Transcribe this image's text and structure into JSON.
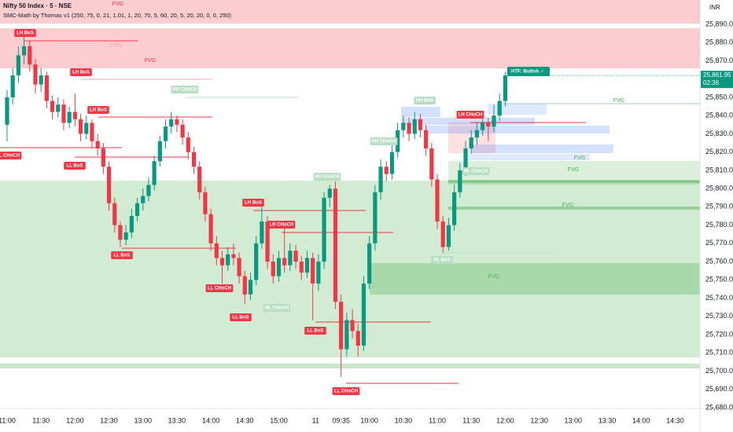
{
  "chart_data": {
    "type": "candlestick",
    "title": "Nifty 50 Index · 5 · NSE",
    "subtitle": "SMC-Math by Thomas v1 (250, 75, 0, 21, 1.01, 1, 20, 70, 5, 60, 20, 5, 20, 20, 0, 0, 250)",
    "currency": "INR",
    "last_price_label": "25,861.95",
    "countdown": "02:36",
    "htf_label": "HTF: Bullish ✓",
    "up_color": "#089981",
    "down_color": "#f23645",
    "grid": false,
    "open": [
      25835,
      25850,
      25862,
      25873,
      25878,
      25868,
      25857,
      25862,
      25848,
      25842,
      25846,
      25836,
      25842,
      25838,
      25830,
      25836,
      25826,
      25822,
      25812,
      25792,
      25780,
      25772,
      25776,
      25785,
      25792,
      25796,
      25802,
      25815,
      25826,
      25834,
      25838,
      25835,
      25828,
      25820,
      25812,
      25798,
      25786,
      25770,
      25762,
      25758,
      25764,
      25762,
      25752,
      25742,
      25750,
      25770,
      25782,
      25760,
      25752,
      25762,
      25758,
      25766,
      25760,
      25754,
      25762,
      25748,
      25760,
      25795,
      25800,
      25738,
      25712,
      25728,
      25722,
      25714,
      25748,
      25770,
      25798,
      25812,
      25808,
      25820,
      25832,
      25836,
      25830,
      25838,
      25832,
      25822,
      25805,
      25782,
      25768,
      25780,
      25798,
      25810,
      25822,
      25828,
      25832,
      25836,
      25834,
      25840,
      25848
    ],
    "high": [
      25854,
      25866,
      25878,
      25884,
      25881,
      25871,
      25866,
      25864,
      25851,
      25850,
      25849,
      25845,
      25852,
      25841,
      25840,
      25838,
      25830,
      25825,
      25815,
      25795,
      25782,
      25780,
      25789,
      25795,
      25800,
      25806,
      25818,
      25829,
      25838,
      25842,
      25840,
      25838,
      25831,
      25823,
      25815,
      25801,
      25789,
      25774,
      25766,
      25768,
      25770,
      25765,
      25755,
      25754,
      25774,
      25790,
      25785,
      25764,
      25766,
      25779,
      25770,
      25769,
      25763,
      25766,
      25765,
      25764,
      25798,
      25802,
      25804,
      25742,
      25732,
      25734,
      25726,
      25752,
      25774,
      25802,
      25816,
      25815,
      25824,
      25836,
      25840,
      25839,
      25842,
      25841,
      25835,
      25825,
      25808,
      25785,
      25784,
      25802,
      25814,
      25826,
      25832,
      25836,
      25842,
      25839,
      25846,
      25852,
      25864
    ],
    "low": [
      25826,
      25846,
      25858,
      25868,
      25864,
      25852,
      25853,
      25844,
      25838,
      25839,
      25832,
      25833,
      25834,
      25826,
      25827,
      25822,
      25818,
      25808,
      25788,
      25776,
      25768,
      25769,
      25773,
      25782,
      25788,
      25793,
      25799,
      25812,
      25822,
      25830,
      25831,
      25824,
      25816,
      25808,
      25794,
      25782,
      25766,
      25758,
      25748,
      25755,
      25758,
      25748,
      25737,
      25739,
      25747,
      25767,
      25756,
      25748,
      25749,
      25754,
      25755,
      25756,
      25750,
      25751,
      25728,
      25744,
      25756,
      25790,
      25734,
      25697,
      25708,
      25718,
      25708,
      25711,
      25745,
      25766,
      25794,
      25804,
      25805,
      25817,
      25828,
      25826,
      25827,
      25828,
      25818,
      25801,
      25778,
      25765,
      25766,
      25777,
      25795,
      25807,
      25819,
      25824,
      25829,
      25826,
      25831,
      25837,
      25845
    ],
    "close": [
      25850,
      25862,
      25873,
      25878,
      25868,
      25857,
      25862,
      25848,
      25842,
      25846,
      25836,
      25842,
      25838,
      25830,
      25836,
      25826,
      25822,
      25812,
      25792,
      25780,
      25772,
      25776,
      25785,
      25792,
      25796,
      25802,
      25815,
      25826,
      25834,
      25838,
      25835,
      25828,
      25820,
      25812,
      25798,
      25786,
      25770,
      25762,
      25758,
      25764,
      25762,
      25752,
      25742,
      25750,
      25770,
      25782,
      25760,
      25752,
      25762,
      25758,
      25766,
      25760,
      25754,
      25762,
      25748,
      25760,
      25795,
      25800,
      25738,
      25712,
      25728,
      25722,
      25714,
      25748,
      25770,
      25798,
      25812,
      25808,
      25820,
      25832,
      25836,
      25830,
      25838,
      25832,
      25822,
      25805,
      25782,
      25768,
      25780,
      25798,
      25810,
      25822,
      25828,
      25832,
      25836,
      25834,
      25840,
      25848,
      25861.95
    ],
    "ylim": [
      25679.6,
      25903.3
    ],
    "yticks": [
      {
        "value": 25890,
        "label": "25,890.00"
      },
      {
        "value": 25880,
        "label": "25,880.00"
      },
      {
        "value": 25870,
        "label": "25,870.00"
      },
      {
        "value": 25860,
        "label": "25,860.00"
      },
      {
        "value": 25850,
        "label": "25,850.00"
      },
      {
        "value": 25840,
        "label": "25,840.00"
      },
      {
        "value": 25830,
        "label": "25,830.00"
      },
      {
        "value": 25820,
        "label": "25,820.00"
      },
      {
        "value": 25810,
        "label": "25,810.00"
      },
      {
        "value": 25800,
        "label": "25,800.00"
      },
      {
        "value": 25790,
        "label": "25,790.00"
      },
      {
        "value": 25780,
        "label": "25,780.00"
      },
      {
        "value": 25770,
        "label": "25,770.00"
      },
      {
        "value": 25760,
        "label": "25,760.00"
      },
      {
        "value": 25750,
        "label": "25,750.00"
      },
      {
        "value": 25740,
        "label": "25,740.00"
      },
      {
        "value": 25730,
        "label": "25,730.00"
      },
      {
        "value": 25720,
        "label": "25,720.00"
      },
      {
        "value": 25710,
        "label": "25,710.00"
      },
      {
        "value": 25700,
        "label": "25,700.00"
      },
      {
        "value": 25690,
        "label": "25,690.00"
      },
      {
        "value": 25680,
        "label": "25,680.00"
      }
    ],
    "xlim": [
      -1.25,
      122.4
    ],
    "xticks": [
      {
        "value": 0,
        "label": "11:00"
      },
      {
        "value": 6,
        "label": "11:30"
      },
      {
        "value": 12,
        "label": "12:00"
      },
      {
        "value": 18,
        "label": "12:30"
      },
      {
        "value": 24,
        "label": "13:00"
      },
      {
        "value": 30,
        "label": "13:30"
      },
      {
        "value": 36,
        "label": "14:00"
      },
      {
        "value": 42,
        "label": "14:30"
      },
      {
        "value": 48,
        "label": "15:00"
      },
      {
        "value": 54.5,
        "label": "11"
      },
      {
        "value": 59,
        "label": "09:35"
      },
      {
        "value": 64,
        "label": "10:00"
      },
      {
        "value": 70,
        "label": "10:30"
      },
      {
        "value": 76,
        "label": "11:00"
      },
      {
        "value": 82,
        "label": "11:30"
      },
      {
        "value": 88,
        "label": "12:00"
      },
      {
        "value": 94,
        "label": "12:30"
      },
      {
        "value": 100,
        "label": "13:00"
      },
      {
        "value": 106,
        "label": "13:30"
      },
      {
        "value": 112,
        "label": "14:00"
      },
      {
        "value": 118,
        "label": "14:30"
      }
    ],
    "annotations": [
      "LH BoS",
      "LH BoS",
      "LH BoS",
      "LL CHoCH",
      "LL BoS",
      "LL BoS",
      "LL CHoCH",
      "LL BoS",
      "LH BoS",
      "LH CHoCH",
      "LL BoS",
      "LL CHoCH",
      "LH CHoCH",
      "HH CHoCH",
      "HH CHoCH",
      "HL CHoCH",
      "HH CHoCH",
      "HH BoS",
      "HL CHoCH",
      "HL BoS"
    ],
    "fvg_labels": [
      "FVG",
      "FVG",
      "FVG",
      "FVG",
      "FVG",
      "FVG",
      "FVG",
      "FVG"
    ]
  }
}
